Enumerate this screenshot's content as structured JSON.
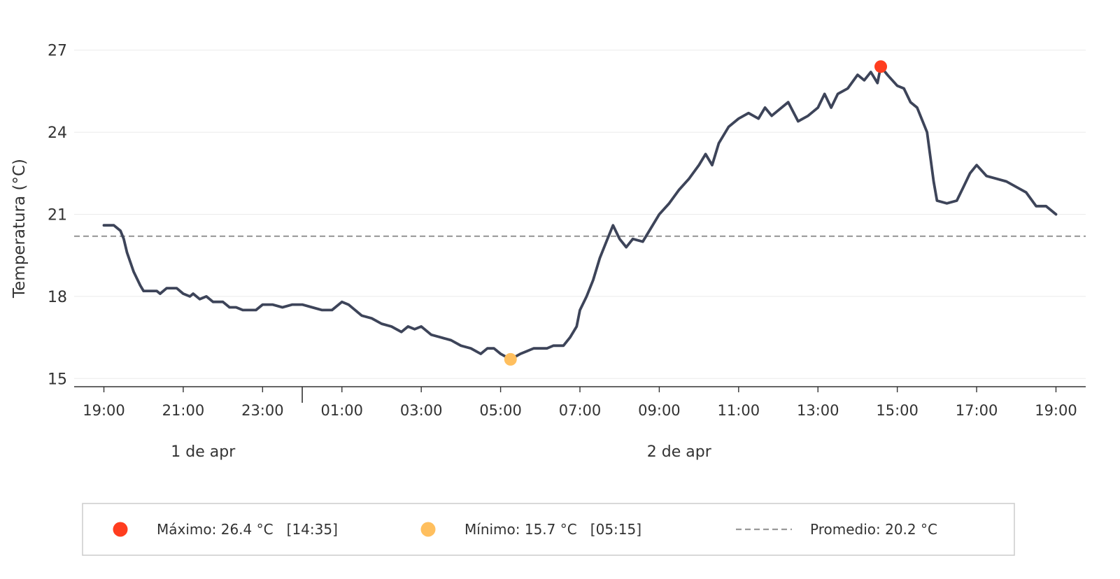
{
  "chart_data": {
    "type": "line",
    "ylabel": "Temperatura (°C)",
    "ylim": [
      14.7,
      27.3
    ],
    "yticks": [
      15,
      18,
      21,
      24,
      27
    ],
    "xlim": [
      "2024-04-01T18:15",
      "2024-04-02T19:45"
    ],
    "xtick_labels": [
      "19:00",
      "21:00",
      "23:00",
      "01:00",
      "03:00",
      "05:00",
      "07:00",
      "09:00",
      "11:00",
      "13:00",
      "15:00",
      "17:00",
      "19:00"
    ],
    "xtick_times": [
      "2024-04-01T19:00",
      "2024-04-01T21:00",
      "2024-04-01T23:00",
      "2024-04-02T01:00",
      "2024-04-02T03:00",
      "2024-04-02T05:00",
      "2024-04-02T07:00",
      "2024-04-02T09:00",
      "2024-04-02T11:00",
      "2024-04-02T13:00",
      "2024-04-02T15:00",
      "2024-04-02T17:00",
      "2024-04-02T19:00"
    ],
    "day_labels": [
      {
        "text": "1 de apr",
        "time": "2024-04-01T21:30"
      },
      {
        "text": "2 de apr",
        "time": "2024-04-02T09:30"
      }
    ],
    "day_separator": "2024-04-02T00:00",
    "grid": "horizontal",
    "series": [
      {
        "color": "#3d4459",
        "points": [
          [
            "2024-04-01T19:00",
            20.6
          ],
          [
            "2024-04-01T19:15",
            20.6
          ],
          [
            "2024-04-01T19:25",
            20.4
          ],
          [
            "2024-04-01T19:30",
            20.1
          ],
          [
            "2024-04-01T19:35",
            19.6
          ],
          [
            "2024-04-01T19:45",
            18.9
          ],
          [
            "2024-04-01T19:55",
            18.4
          ],
          [
            "2024-04-01T20:00",
            18.2
          ],
          [
            "2024-04-01T20:20",
            18.2
          ],
          [
            "2024-04-01T20:25",
            18.1
          ],
          [
            "2024-04-01T20:35",
            18.3
          ],
          [
            "2024-04-01T20:50",
            18.3
          ],
          [
            "2024-04-01T21:00",
            18.1
          ],
          [
            "2024-04-01T21:10",
            18.0
          ],
          [
            "2024-04-01T21:15",
            18.1
          ],
          [
            "2024-04-01T21:25",
            17.9
          ],
          [
            "2024-04-01T21:35",
            18.0
          ],
          [
            "2024-04-01T21:45",
            17.8
          ],
          [
            "2024-04-01T22:00",
            17.8
          ],
          [
            "2024-04-01T22:10",
            17.6
          ],
          [
            "2024-04-01T22:20",
            17.6
          ],
          [
            "2024-04-01T22:30",
            17.5
          ],
          [
            "2024-04-01T22:50",
            17.5
          ],
          [
            "2024-04-01T23:00",
            17.7
          ],
          [
            "2024-04-01T23:15",
            17.7
          ],
          [
            "2024-04-01T23:30",
            17.6
          ],
          [
            "2024-04-01T23:45",
            17.7
          ],
          [
            "2024-04-02T00:00",
            17.7
          ],
          [
            "2024-04-02T00:15",
            17.6
          ],
          [
            "2024-04-02T00:30",
            17.5
          ],
          [
            "2024-04-02T00:45",
            17.5
          ],
          [
            "2024-04-02T01:00",
            17.8
          ],
          [
            "2024-04-02T01:10",
            17.7
          ],
          [
            "2024-04-02T01:30",
            17.3
          ],
          [
            "2024-04-02T01:45",
            17.2
          ],
          [
            "2024-04-02T02:00",
            17.0
          ],
          [
            "2024-04-02T02:15",
            16.9
          ],
          [
            "2024-04-02T02:30",
            16.7
          ],
          [
            "2024-04-02T02:40",
            16.9
          ],
          [
            "2024-04-02T02:50",
            16.8
          ],
          [
            "2024-04-02T03:00",
            16.9
          ],
          [
            "2024-04-02T03:15",
            16.6
          ],
          [
            "2024-04-02T03:30",
            16.5
          ],
          [
            "2024-04-02T03:45",
            16.4
          ],
          [
            "2024-04-02T04:00",
            16.2
          ],
          [
            "2024-04-02T04:15",
            16.1
          ],
          [
            "2024-04-02T04:30",
            15.9
          ],
          [
            "2024-04-02T04:40",
            16.1
          ],
          [
            "2024-04-02T04:50",
            16.1
          ],
          [
            "2024-04-02T05:00",
            15.9
          ],
          [
            "2024-04-02T05:15",
            15.7
          ],
          [
            "2024-04-02T05:30",
            15.9
          ],
          [
            "2024-04-02T05:40",
            16.0
          ],
          [
            "2024-04-02T05:50",
            16.1
          ],
          [
            "2024-04-02T06:10",
            16.1
          ],
          [
            "2024-04-02T06:20",
            16.2
          ],
          [
            "2024-04-02T06:35",
            16.2
          ],
          [
            "2024-04-02T06:45",
            16.5
          ],
          [
            "2024-04-02T06:55",
            16.9
          ],
          [
            "2024-04-02T07:00",
            17.5
          ],
          [
            "2024-04-02T07:10",
            18.0
          ],
          [
            "2024-04-02T07:20",
            18.6
          ],
          [
            "2024-04-02T07:30",
            19.4
          ],
          [
            "2024-04-02T07:40",
            20.0
          ],
          [
            "2024-04-02T07:50",
            20.6
          ],
          [
            "2024-04-02T08:00",
            20.1
          ],
          [
            "2024-04-02T08:10",
            19.8
          ],
          [
            "2024-04-02T08:20",
            20.1
          ],
          [
            "2024-04-02T08:35",
            20.0
          ],
          [
            "2024-04-02T08:45",
            20.4
          ],
          [
            "2024-04-02T09:00",
            21.0
          ],
          [
            "2024-04-02T09:15",
            21.4
          ],
          [
            "2024-04-02T09:30",
            21.9
          ],
          [
            "2024-04-02T09:45",
            22.3
          ],
          [
            "2024-04-02T10:00",
            22.8
          ],
          [
            "2024-04-02T10:10",
            23.2
          ],
          [
            "2024-04-02T10:20",
            22.8
          ],
          [
            "2024-04-02T10:30",
            23.6
          ],
          [
            "2024-04-02T10:45",
            24.2
          ],
          [
            "2024-04-02T11:00",
            24.5
          ],
          [
            "2024-04-02T11:15",
            24.7
          ],
          [
            "2024-04-02T11:30",
            24.5
          ],
          [
            "2024-04-02T11:40",
            24.9
          ],
          [
            "2024-04-02T11:50",
            24.6
          ],
          [
            "2024-04-02T12:00",
            24.8
          ],
          [
            "2024-04-02T12:15",
            25.1
          ],
          [
            "2024-04-02T12:30",
            24.4
          ],
          [
            "2024-04-02T12:45",
            24.6
          ],
          [
            "2024-04-02T13:00",
            24.9
          ],
          [
            "2024-04-02T13:10",
            25.4
          ],
          [
            "2024-04-02T13:20",
            24.9
          ],
          [
            "2024-04-02T13:30",
            25.4
          ],
          [
            "2024-04-02T13:45",
            25.6
          ],
          [
            "2024-04-02T14:00",
            26.1
          ],
          [
            "2024-04-02T14:10",
            25.9
          ],
          [
            "2024-04-02T14:20",
            26.2
          ],
          [
            "2024-04-02T14:30",
            25.8
          ],
          [
            "2024-04-02T14:35",
            26.4
          ],
          [
            "2024-04-02T14:45",
            26.1
          ],
          [
            "2024-04-02T15:00",
            25.7
          ],
          [
            "2024-04-02T15:10",
            25.6
          ],
          [
            "2024-04-02T15:20",
            25.1
          ],
          [
            "2024-04-02T15:30",
            24.9
          ],
          [
            "2024-04-02T15:45",
            24.0
          ],
          [
            "2024-04-02T15:55",
            22.2
          ],
          [
            "2024-04-02T16:00",
            21.5
          ],
          [
            "2024-04-02T16:15",
            21.4
          ],
          [
            "2024-04-02T16:30",
            21.5
          ],
          [
            "2024-04-02T16:40",
            22.0
          ],
          [
            "2024-04-02T16:50",
            22.5
          ],
          [
            "2024-04-02T17:00",
            22.8
          ],
          [
            "2024-04-02T17:15",
            22.4
          ],
          [
            "2024-04-02T17:30",
            22.3
          ],
          [
            "2024-04-02T17:45",
            22.2
          ],
          [
            "2024-04-02T18:00",
            22.0
          ],
          [
            "2024-04-02T18:15",
            21.8
          ],
          [
            "2024-04-02T18:30",
            21.3
          ],
          [
            "2024-04-02T18:45",
            21.3
          ],
          [
            "2024-04-02T19:00",
            21.0
          ]
        ]
      }
    ],
    "max_marker": {
      "time": "2024-04-02T14:35",
      "value": 26.4,
      "color": "#ff3d1f"
    },
    "min_marker": {
      "time": "2024-04-02T05:15",
      "value": 15.7,
      "color": "#ffbf5e"
    },
    "average": {
      "value": 20.2,
      "color": "#999999",
      "style": "dashed"
    },
    "legend": {
      "placement": "bottom",
      "items": [
        {
          "type": "marker",
          "color": "#ff3d1f",
          "label": "Máximo: 26.4 °C   [14:35]"
        },
        {
          "type": "marker",
          "color": "#ffbf5e",
          "label": "Mínimo: 15.7 °C   [05:15]"
        },
        {
          "type": "dashed-line",
          "color": "#999999",
          "label": "Promedio: 20.2 °C"
        }
      ]
    }
  }
}
